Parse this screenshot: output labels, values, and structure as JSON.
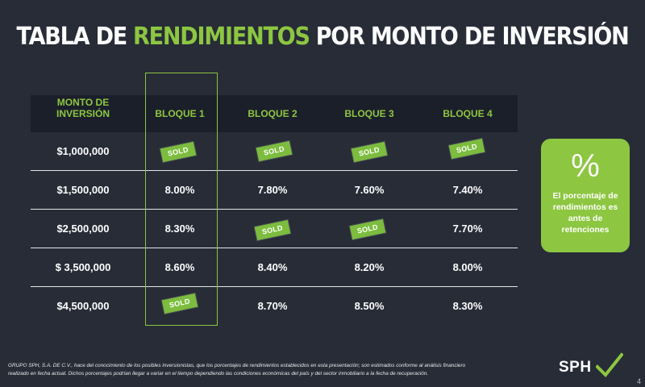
{
  "title": {
    "pre": "TABLA DE",
    "accent": "RENDIMIENTOS",
    "post": "POR MONTO DE INVERSIÓN"
  },
  "table": {
    "headers": [
      "MONTO DE\nINVERSIÓN",
      "BLOQUE 1",
      "BLOQUE 2",
      "BLOQUE 3",
      "BLOQUE 4"
    ],
    "sold_label": "SOLD",
    "rows": [
      {
        "amount": "$1,000,000",
        "cells": [
          {
            "value": "",
            "sold": true
          },
          {
            "value": "",
            "sold": true
          },
          {
            "value": "",
            "sold": true
          },
          {
            "value": "",
            "sold": true
          }
        ]
      },
      {
        "amount": "$1,500,000",
        "cells": [
          {
            "value": "8.00%",
            "sold": false
          },
          {
            "value": "7.80%",
            "sold": false
          },
          {
            "value": "7.60%",
            "sold": false
          },
          {
            "value": "7.40%",
            "sold": false
          }
        ]
      },
      {
        "amount": "$2,500,000",
        "cells": [
          {
            "value": "8.30%",
            "sold": false
          },
          {
            "value": "",
            "sold": true
          },
          {
            "value": "",
            "sold": true
          },
          {
            "value": "7.70%",
            "sold": false
          }
        ]
      },
      {
        "amount": "$ 3,500,000",
        "cells": [
          {
            "value": "8.60%",
            "sold": false
          },
          {
            "value": "8.40%",
            "sold": false
          },
          {
            "value": "8.20%",
            "sold": false
          },
          {
            "value": "8.00%",
            "sold": false
          }
        ]
      },
      {
        "amount": "$4,500,000",
        "cells": [
          {
            "value": "",
            "sold": true
          },
          {
            "value": "8.70%",
            "sold": false
          },
          {
            "value": "8.50%",
            "sold": false
          },
          {
            "value": "8.30%",
            "sold": false
          }
        ]
      }
    ]
  },
  "badge": {
    "symbol": "%",
    "text": "El porcentaje de rendimientos es antes de retenciones"
  },
  "footer": {
    "line1": "GRUPO SPH, S.A. DE C.V., hace del conocimiento de los posibles inversionistas, que los porcentajes de rendimientos establecidos en esta presentación; son estimados conforme al análisis financiero",
    "line2": "realizado en fecha actual. Dichos porcentajes podrían llegar a variar en el tiempo dependiendo las condiciones económicas del país y del sector inmobiliario a la fecha de recuperación."
  },
  "logo": {
    "text": "SPH",
    "check_color": "#8dc641"
  },
  "colors": {
    "accent": "#8dc641",
    "background": "#272c37",
    "header_band": "#1b1f2a"
  },
  "page_number": "4"
}
